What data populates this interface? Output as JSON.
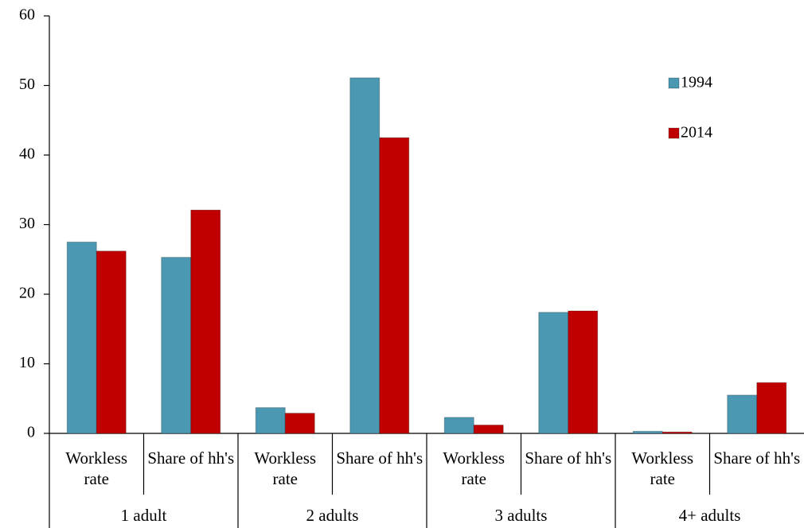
{
  "chart_data": {
    "type": "bar",
    "categories": [
      "Workless rate",
      "Share of hh's",
      "Workless rate",
      "Share of hh's",
      "Workless rate",
      "Share of hh's",
      "Workless rate",
      "Share of hh's"
    ],
    "groups": [
      "1 adult",
      "2 adults",
      "3 adults",
      "4+ adults"
    ],
    "series": [
      {
        "name": "1994",
        "color": "#4a98b2",
        "values": [
          27.5,
          25.3,
          3.7,
          51.1,
          2.3,
          17.4,
          0.3,
          5.5
        ]
      },
      {
        "name": "2014",
        "color": "#c00000",
        "values": [
          26.2,
          32.1,
          2.9,
          42.5,
          1.2,
          17.6,
          0.2,
          7.3
        ]
      }
    ],
    "ylim": [
      0,
      60
    ],
    "yticks": [
      0,
      10,
      20,
      30,
      40,
      50,
      60
    ],
    "grid": false,
    "legend": "top-right"
  }
}
